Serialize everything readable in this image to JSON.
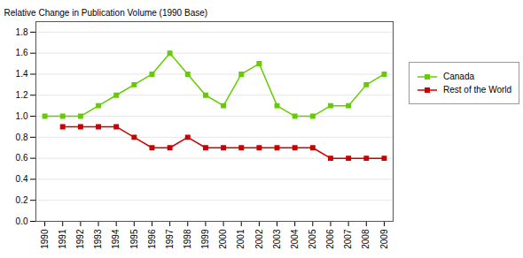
{
  "chart_data": {
    "type": "line",
    "ylabel": "Relative Change in Publication Volume (1990 Base)",
    "x": [
      1990,
      1991,
      1992,
      1993,
      1994,
      1995,
      1996,
      1997,
      1998,
      1999,
      2000,
      2001,
      2002,
      2003,
      2004,
      2005,
      2006,
      2007,
      2008,
      2009
    ],
    "series": [
      {
        "name": "Canada",
        "color": "#66cc00",
        "marker": "square",
        "values": [
          1.0,
          1.0,
          1.0,
          1.1,
          1.2,
          1.3,
          1.4,
          1.6,
          1.4,
          1.2,
          1.1,
          1.4,
          1.5,
          1.1,
          1.0,
          1.0,
          1.1,
          1.1,
          1.3,
          1.4
        ]
      },
      {
        "name": "Rest of the World",
        "color": "#cc0000",
        "marker": "square",
        "values": [
          null,
          0.9,
          0.9,
          0.9,
          0.9,
          0.8,
          0.7,
          0.7,
          0.8,
          0.7,
          0.7,
          0.7,
          0.7,
          0.7,
          0.7,
          0.7,
          0.6,
          0.6,
          0.6,
          0.6
        ]
      }
    ],
    "xlim": [
      1989.5,
      2009.5
    ],
    "xticks": [
      1990,
      1991,
      1992,
      1993,
      1994,
      1995,
      1996,
      1997,
      1998,
      1999,
      2000,
      2001,
      2002,
      2003,
      2004,
      2005,
      2006,
      2007,
      2008,
      2009
    ],
    "ylim": [
      0.0,
      1.9
    ],
    "yticks": [
      {
        "value": 0,
        "label": "0.0"
      },
      0.2,
      0.4,
      0.6,
      0.8,
      {
        "value": 1,
        "label": "1.0"
      },
      1.2,
      1.4,
      1.6,
      1.8
    ],
    "grid": "y",
    "legend": "right"
  }
}
